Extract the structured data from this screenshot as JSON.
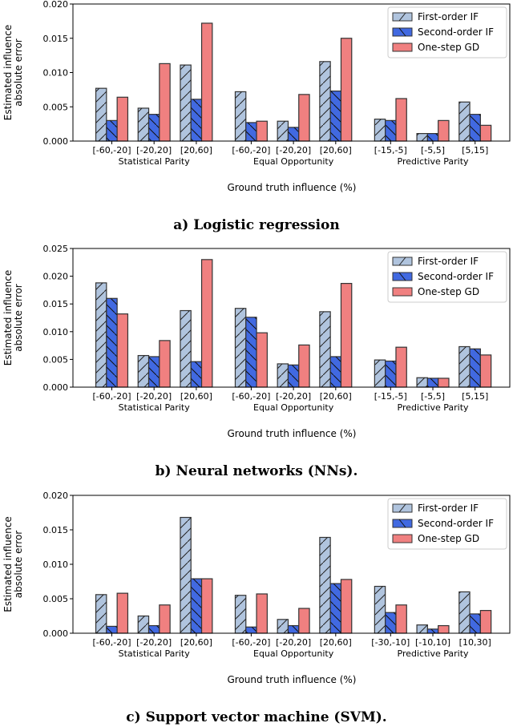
{
  "colors": {
    "first_order": "#b0c4de",
    "second_order": "#4169e1",
    "one_step": "#f08080",
    "edge": "#333333"
  },
  "chart_data": [
    {
      "type": "bar",
      "title": "a) Logistic regression",
      "xlabel": "Ground truth influence (%)",
      "ylabel": [
        "Estimated influence",
        "absolute error"
      ],
      "ylim": [
        0,
        0.02
      ],
      "yticks": [
        "0.000",
        "0.005",
        "0.010",
        "0.015",
        "0.020"
      ],
      "legend": "top-right",
      "groups": [
        "Statistical Parity",
        "Equal Opportunity",
        "Predictive Parity"
      ],
      "categories": [
        "[-60,-20]",
        "[-20,20]",
        "[20,60]",
        "[-60,-20]",
        "[-20,20]",
        "[20,60]",
        "[-15,-5]",
        "[-5,5]",
        "[5,15]"
      ],
      "series": [
        {
          "name": "First-order IF",
          "hatch": "/",
          "values": [
            0.0077,
            0.0048,
            0.0111,
            0.0072,
            0.0029,
            0.0116,
            0.0032,
            0.0011,
            0.0057
          ]
        },
        {
          "name": "Second-order IF",
          "hatch": "\\",
          "values": [
            0.003,
            0.0039,
            0.0061,
            0.0027,
            0.002,
            0.0073,
            0.003,
            0.0011,
            0.0039
          ]
        },
        {
          "name": "One-step GD",
          "hatch": "",
          "values": [
            0.0064,
            0.0113,
            0.0172,
            0.0029,
            0.0068,
            0.015,
            0.0062,
            0.003,
            0.0023
          ]
        }
      ]
    },
    {
      "type": "bar",
      "title": "b) Neural networks (NNs).",
      "xlabel": "Ground truth influence (%)",
      "ylabel": [
        "Estimated influence",
        "absolute error"
      ],
      "ylim": [
        0,
        0.025
      ],
      "yticks": [
        "0.000",
        "0.005",
        "0.010",
        "0.015",
        "0.020",
        "0.025"
      ],
      "legend": "top-right",
      "groups": [
        "Statistical Parity",
        "Equal Opportunity",
        "Predictive Parity"
      ],
      "categories": [
        "[-60,-20]",
        "[-20,20]",
        "[20,60]",
        "[-60,-20]",
        "[-20,20]",
        "[20,60]",
        "[-15,-5]",
        "[-5,5]",
        "[5,15]"
      ],
      "series": [
        {
          "name": "First-order IF",
          "hatch": "/",
          "values": [
            0.0188,
            0.0057,
            0.0138,
            0.0142,
            0.0042,
            0.0136,
            0.0049,
            0.0017,
            0.0073
          ]
        },
        {
          "name": "Second-order IF",
          "hatch": "\\",
          "values": [
            0.016,
            0.0055,
            0.0046,
            0.0126,
            0.004,
            0.0055,
            0.0047,
            0.0016,
            0.0069
          ]
        },
        {
          "name": "One-step GD",
          "hatch": "",
          "values": [
            0.0132,
            0.0084,
            0.023,
            0.0098,
            0.0076,
            0.0187,
            0.0072,
            0.0016,
            0.0058
          ]
        }
      ]
    },
    {
      "type": "bar",
      "title": "c) Support vector machine (SVM).",
      "xlabel": "Ground truth influence (%)",
      "ylabel": [
        "Estimated influence",
        "absolute error"
      ],
      "ylim": [
        0,
        0.02
      ],
      "yticks": [
        "0.000",
        "0.005",
        "0.010",
        "0.015",
        "0.020"
      ],
      "legend": "top-right",
      "groups": [
        "Statistical Parity",
        "Equal Opportunity",
        "Predictive Parity"
      ],
      "categories": [
        "[-60,-20]",
        "[-20,20]",
        "[20,60]",
        "[-60,-20]",
        "[-20,20]",
        "[20,60]",
        "[-30,-10]",
        "[-10,10]",
        "[10,30]"
      ],
      "series": [
        {
          "name": "First-order IF",
          "hatch": "/",
          "values": [
            0.0056,
            0.0025,
            0.0168,
            0.0055,
            0.002,
            0.0139,
            0.0068,
            0.0012,
            0.006
          ]
        },
        {
          "name": "Second-order IF",
          "hatch": "\\",
          "values": [
            0.001,
            0.0011,
            0.0079,
            0.0009,
            0.0011,
            0.0072,
            0.003,
            0.0006,
            0.0028
          ]
        },
        {
          "name": "One-step GD",
          "hatch": "",
          "values": [
            0.0058,
            0.0041,
            0.0079,
            0.0057,
            0.0036,
            0.0078,
            0.0041,
            0.0011,
            0.0033
          ]
        }
      ]
    }
  ]
}
